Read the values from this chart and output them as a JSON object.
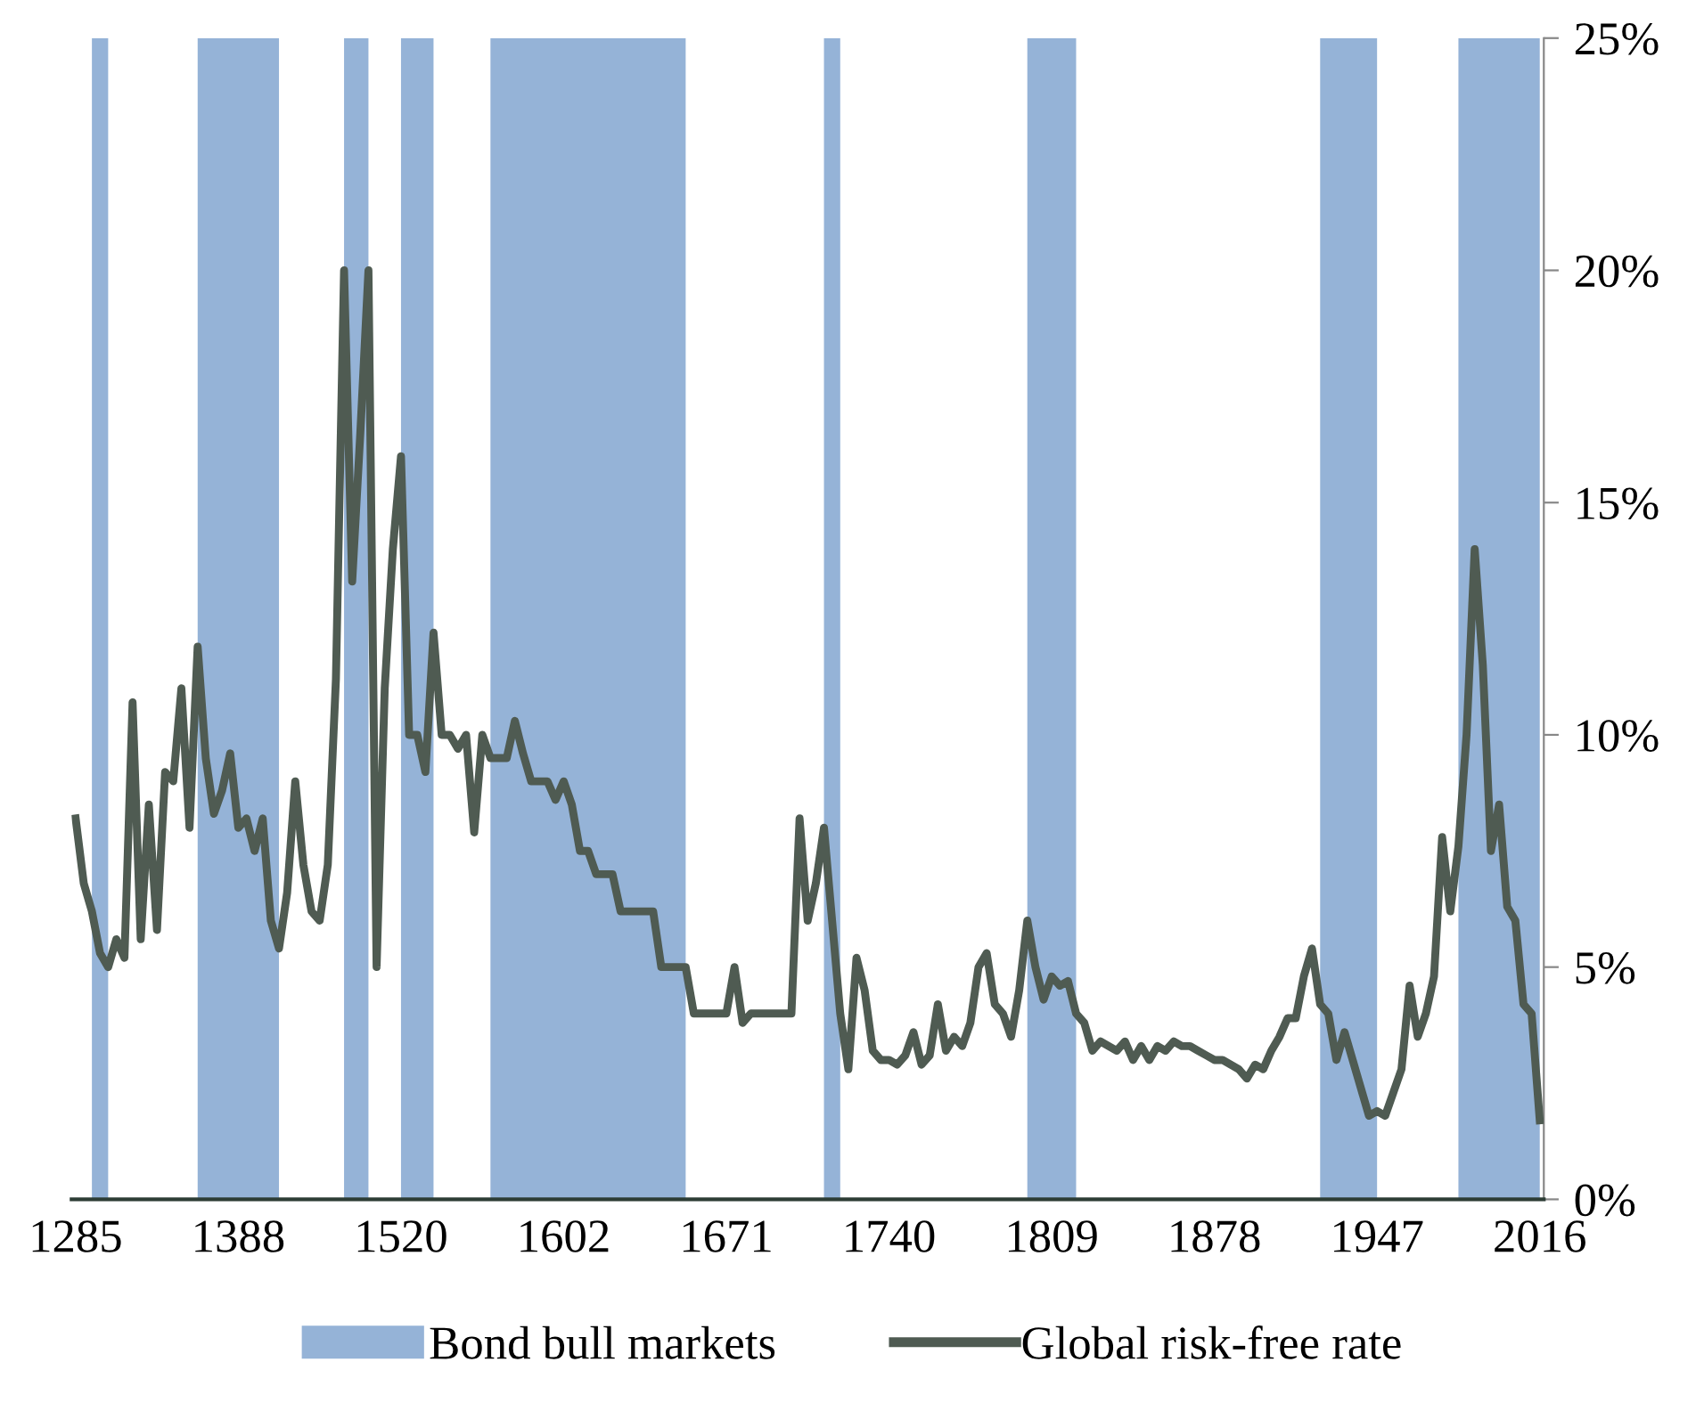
{
  "chart_data": {
    "type": "line",
    "categories": [
      "1285",
      null,
      null,
      null,
      null,
      null,
      null,
      null,
      null,
      null,
      null,
      null,
      null,
      null,
      null,
      null,
      null,
      null,
      null,
      null,
      "1388",
      null,
      null,
      null,
      null,
      null,
      null,
      null,
      null,
      null,
      null,
      null,
      null,
      null,
      null,
      null,
      null,
      null,
      null,
      null,
      "1520",
      null,
      null,
      null,
      null,
      null,
      null,
      null,
      null,
      null,
      null,
      null,
      null,
      null,
      null,
      null,
      null,
      null,
      null,
      null,
      "1602",
      null,
      null,
      null,
      null,
      null,
      null,
      null,
      null,
      null,
      null,
      null,
      null,
      null,
      null,
      null,
      null,
      null,
      null,
      null,
      "1671",
      null,
      null,
      null,
      null,
      null,
      null,
      null,
      null,
      null,
      null,
      null,
      null,
      null,
      null,
      null,
      null,
      null,
      null,
      null,
      "1740",
      null,
      null,
      null,
      null,
      null,
      null,
      null,
      null,
      null,
      null,
      null,
      null,
      null,
      null,
      null,
      null,
      null,
      null,
      null,
      "1809",
      null,
      null,
      null,
      null,
      null,
      null,
      null,
      null,
      null,
      null,
      null,
      null,
      null,
      null,
      null,
      null,
      null,
      null,
      null,
      "1878",
      null,
      null,
      null,
      null,
      null,
      null,
      null,
      null,
      null,
      null,
      null,
      null,
      null,
      null,
      null,
      null,
      null,
      null,
      null,
      "1947",
      null,
      null,
      null,
      null,
      null,
      null,
      null,
      null,
      null,
      null,
      null,
      null,
      null,
      null,
      null,
      null,
      null,
      null,
      null,
      "2016"
    ],
    "series": [
      {
        "name": "Bond bull markets",
        "type": "area",
        "color": "#95b3d7",
        "values": [
          null,
          null,
          25,
          25,
          25,
          null,
          null,
          null,
          null,
          null,
          null,
          null,
          null,
          null,
          null,
          25,
          25,
          25,
          25,
          25,
          25,
          25,
          25,
          25,
          25,
          25,
          null,
          null,
          null,
          null,
          null,
          null,
          null,
          25,
          25,
          25,
          25,
          null,
          null,
          null,
          25,
          25,
          25,
          25,
          25,
          null,
          null,
          null,
          null,
          null,
          null,
          25,
          25,
          25,
          25,
          25,
          25,
          25,
          25,
          25,
          25,
          25,
          25,
          25,
          25,
          25,
          25,
          25,
          25,
          25,
          25,
          25,
          25,
          25,
          25,
          25,
          null,
          null,
          null,
          null,
          null,
          null,
          null,
          null,
          null,
          null,
          null,
          null,
          null,
          null,
          null,
          null,
          25,
          25,
          25,
          null,
          null,
          null,
          null,
          null,
          null,
          null,
          null,
          null,
          null,
          null,
          null,
          null,
          null,
          null,
          null,
          null,
          null,
          null,
          null,
          null,
          null,
          25,
          25,
          25,
          25,
          25,
          25,
          25,
          null,
          null,
          null,
          null,
          null,
          null,
          null,
          null,
          null,
          null,
          null,
          null,
          null,
          null,
          null,
          null,
          null,
          null,
          null,
          null,
          null,
          null,
          null,
          null,
          null,
          null,
          null,
          null,
          null,
          25,
          25,
          25,
          25,
          25,
          25,
          25,
          25,
          null,
          null,
          null,
          null,
          null,
          null,
          null,
          null,
          null,
          25,
          25,
          25,
          25,
          25,
          25,
          25,
          25,
          25,
          25,
          25
        ]
      },
      {
        "name": "Global risk-free rate",
        "color": "#4f5b52",
        "values": [
          8.2,
          6.8,
          6.2,
          5.3,
          5.0,
          5.6,
          5.2,
          10.7,
          5.6,
          8.5,
          5.8,
          9.2,
          9.0,
          11.0,
          8.0,
          11.9,
          9.5,
          8.3,
          8.8,
          9.6,
          8.0,
          8.2,
          7.5,
          8.2,
          6.0,
          5.4,
          6.6,
          9.0,
          7.2,
          6.2,
          6.0,
          7.2,
          11.2,
          20.0,
          13.3,
          16.5,
          20.0,
          5.0,
          11.0,
          14.0,
          16.0,
          10.0,
          10.0,
          9.2,
          12.2,
          10.0,
          10.0,
          9.7,
          10.0,
          7.9,
          10.0,
          9.5,
          9.5,
          9.5,
          10.3,
          9.6,
          9.0,
          9.0,
          9.0,
          8.6,
          9.0,
          8.5,
          7.5,
          7.5,
          7.0,
          7.0,
          7.0,
          6.2,
          6.2,
          6.2,
          6.2,
          6.2,
          5.0,
          5.0,
          5.0,
          5.0,
          4.0,
          4.0,
          4.0,
          4.0,
          4.0,
          5.0,
          3.8,
          4.0,
          4.0,
          4.0,
          4.0,
          4.0,
          4.0,
          8.2,
          6.0,
          6.8,
          8.0,
          6.0,
          4.0,
          2.8,
          5.2,
          4.5,
          3.2,
          3.0,
          3.0,
          2.9,
          3.1,
          3.6,
          2.9,
          3.1,
          4.2,
          3.2,
          3.5,
          3.3,
          3.8,
          5.0,
          5.3,
          4.2,
          4.0,
          3.5,
          4.5,
          6.0,
          5.0,
          4.3,
          4.8,
          4.6,
          4.7,
          4.0,
          3.8,
          3.2,
          3.4,
          3.3,
          3.2,
          3.4,
          3.0,
          3.3,
          3.0,
          3.3,
          3.2,
          3.4,
          3.3,
          3.3,
          3.2,
          3.1,
          3.0,
          3.0,
          2.9,
          2.8,
          2.6,
          2.9,
          2.8,
          3.2,
          3.5,
          3.9,
          3.9,
          4.8,
          5.4,
          4.2,
          4.0,
          3.0,
          3.6,
          3.0,
          2.4,
          1.8,
          1.9,
          1.8,
          2.3,
          2.8,
          4.6,
          3.5,
          4.0,
          4.8,
          7.8,
          6.2,
          7.6,
          10.0,
          14.0,
          11.5,
          7.5,
          8.5,
          6.3,
          6.0,
          4.2,
          4.0,
          1.7
        ]
      }
    ],
    "ylim": [
      0,
      25
    ],
    "yticks": [
      {
        "value": 0,
        "label": "0%"
      },
      {
        "value": 5,
        "label": "5%"
      },
      {
        "value": 10,
        "label": "10%"
      },
      {
        "value": 15,
        "label": "15%"
      },
      {
        "value": 20,
        "label": "20%"
      },
      {
        "value": 25,
        "label": "25%"
      }
    ],
    "legend": "bottom",
    "line_style": "solid",
    "marker": "none"
  }
}
